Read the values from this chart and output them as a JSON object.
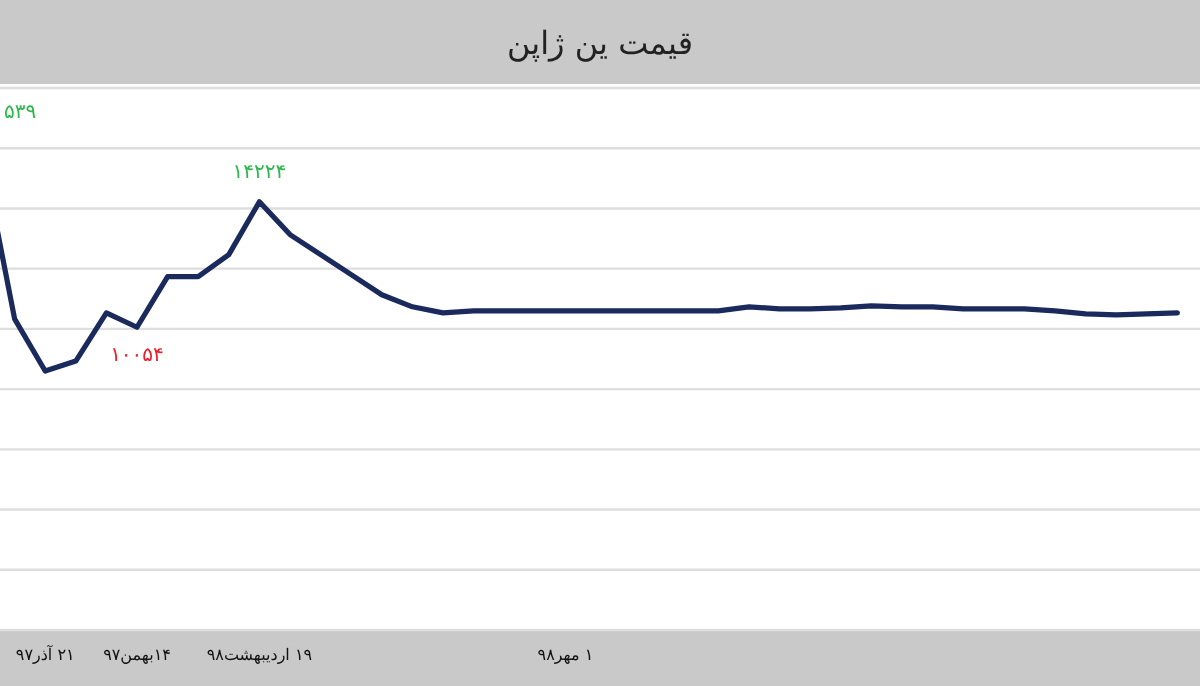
{
  "chart_data": {
    "type": "line",
    "title": "قیمت ین ژاپن",
    "categories": [
      null,
      null,
      "۲۱ آذر۹۷",
      null,
      null,
      "۱۴بهمن۹۷",
      null,
      null,
      null,
      "۱۹ اردیبهشت۹۸",
      null,
      null,
      null,
      null,
      null,
      null,
      null,
      null,
      null,
      "۱ مهر۹۸",
      null,
      null,
      null,
      null,
      null,
      null,
      null,
      null,
      null,
      null,
      null,
      null,
      null,
      null,
      null,
      null,
      null,
      null,
      null,
      null
    ],
    "series": [
      {
        "color": "#1b2a5c",
        "values": [
          15539,
          10333,
          8600,
          8933,
          10533,
          10054,
          11733,
          11733,
          12467,
          14224,
          13133,
          12467,
          11800,
          11133,
          10733,
          10533,
          10600,
          10600,
          10600,
          10600,
          10600,
          10600,
          10600,
          10600,
          10600,
          10733,
          10667,
          10667,
          10700,
          10767,
          10733,
          10733,
          10667,
          10667,
          10667,
          10600,
          10500,
          10467,
          10500,
          10533
        ],
        "value_labels": [
          null,
          null,
          null,
          null,
          null,
          "۱۰۰۵۴",
          null,
          null,
          null,
          "۱۴۲۲۴",
          null,
          null,
          null,
          null,
          null,
          null,
          null,
          null,
          null,
          null,
          null,
          null,
          null,
          null,
          null,
          null,
          null,
          null,
          null,
          null,
          null,
          null,
          null,
          null,
          null,
          null,
          null,
          null,
          null,
          null
        ]
      }
    ],
    "ylim": [
      0,
      18000
    ],
    "yticks": [
      {
        "value": 0,
        "label": null
      },
      {
        "value": 2000,
        "label": null
      },
      {
        "value": 4000,
        "label": null
      },
      {
        "value": 6000,
        "label": null
      },
      {
        "value": 8000,
        "label": null
      },
      {
        "value": 10000,
        "label": null
      },
      {
        "value": 12000,
        "label": null
      },
      {
        "value": 14000,
        "label": null
      },
      {
        "value": 16000,
        "label": null
      },
      {
        "value": 18000,
        "label": null
      }
    ],
    "grid": "y",
    "tick_labels": "x",
    "marker": "none",
    "line_style": "solid",
    "annotations": [
      "۵۳۹"
    ]
  }
}
